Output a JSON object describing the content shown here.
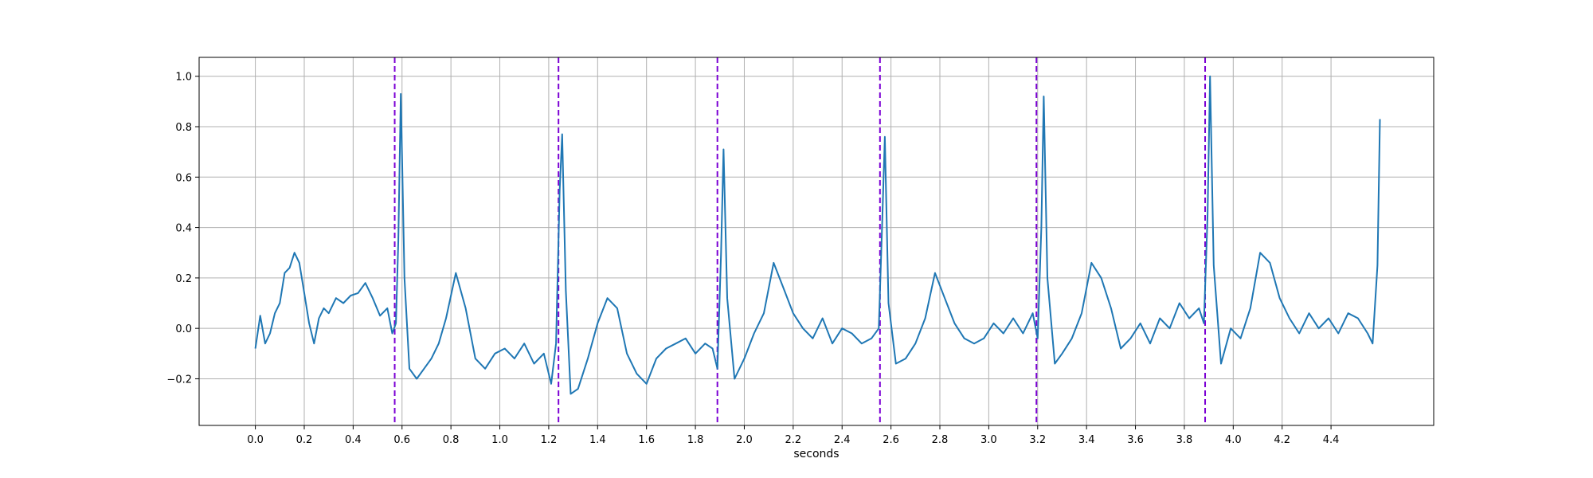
{
  "chart_data": {
    "type": "line",
    "title": "",
    "xlabel": "seconds",
    "ylabel": "",
    "xlim": [
      -0.23,
      4.82
    ],
    "ylim": [
      -0.385,
      1.075
    ],
    "grid": true,
    "x_ticks": [
      0.0,
      0.2,
      0.4,
      0.6,
      0.8,
      1.0,
      1.2,
      1.4,
      1.6,
      1.8,
      2.0,
      2.2,
      2.4,
      2.6,
      2.8,
      3.0,
      3.2,
      3.4,
      3.6,
      3.8,
      4.0,
      4.2,
      4.4
    ],
    "x_tick_labels": [
      "0.0",
      "0.2",
      "0.4",
      "0.6",
      "0.8",
      "1.0",
      "1.2",
      "1.4",
      "1.6",
      "1.8",
      "2.0",
      "2.2",
      "2.4",
      "2.6",
      "2.8",
      "3.0",
      "3.2",
      "3.4",
      "3.6",
      "3.8",
      "4.0",
      "4.2",
      "4.4"
    ],
    "y_ticks": [
      -0.2,
      0.0,
      0.2,
      0.4,
      0.6,
      0.8,
      1.0
    ],
    "y_tick_labels": [
      "−0.2",
      "0.0",
      "0.2",
      "0.4",
      "0.6",
      "0.8",
      "1.0"
    ],
    "series": [
      {
        "name": "",
        "color": "#1f77b4",
        "x": [
          0.0,
          0.02,
          0.04,
          0.06,
          0.08,
          0.1,
          0.12,
          0.14,
          0.16,
          0.18,
          0.2,
          0.22,
          0.24,
          0.26,
          0.28,
          0.3,
          0.33,
          0.36,
          0.39,
          0.42,
          0.45,
          0.48,
          0.51,
          0.54,
          0.56,
          0.575,
          0.585,
          0.595,
          0.61,
          0.63,
          0.66,
          0.69,
          0.72,
          0.75,
          0.78,
          0.82,
          0.86,
          0.9,
          0.94,
          0.98,
          1.02,
          1.06,
          1.1,
          1.14,
          1.18,
          1.21,
          1.23,
          1.245,
          1.255,
          1.27,
          1.29,
          1.32,
          1.36,
          1.4,
          1.44,
          1.48,
          1.52,
          1.56,
          1.6,
          1.64,
          1.68,
          1.72,
          1.76,
          1.8,
          1.84,
          1.87,
          1.89,
          1.905,
          1.915,
          1.93,
          1.96,
          2.0,
          2.04,
          2.08,
          2.12,
          2.16,
          2.2,
          2.24,
          2.28,
          2.32,
          2.36,
          2.4,
          2.44,
          2.48,
          2.52,
          2.55,
          2.565,
          2.575,
          2.59,
          2.62,
          2.66,
          2.7,
          2.74,
          2.78,
          2.82,
          2.86,
          2.9,
          2.94,
          2.98,
          3.02,
          3.06,
          3.1,
          3.14,
          3.18,
          3.2,
          3.215,
          3.225,
          3.24,
          3.27,
          3.3,
          3.34,
          3.38,
          3.42,
          3.46,
          3.5,
          3.54,
          3.58,
          3.62,
          3.66,
          3.7,
          3.74,
          3.78,
          3.82,
          3.86,
          3.88,
          3.895,
          3.905,
          3.92,
          3.95,
          3.99,
          4.03,
          4.07,
          4.11,
          4.15,
          4.19,
          4.23,
          4.27,
          4.31,
          4.35,
          4.39,
          4.43,
          4.47,
          4.51,
          4.55,
          4.57,
          4.59,
          4.6
        ],
        "y": [
          -0.08,
          0.05,
          -0.06,
          -0.02,
          0.06,
          0.1,
          0.22,
          0.24,
          0.3,
          0.26,
          0.14,
          0.02,
          -0.06,
          0.04,
          0.08,
          0.06,
          0.12,
          0.1,
          0.13,
          0.14,
          0.18,
          0.12,
          0.05,
          0.08,
          -0.02,
          0.02,
          0.35,
          0.93,
          0.2,
          -0.16,
          -0.2,
          -0.16,
          -0.12,
          -0.06,
          0.04,
          0.22,
          0.08,
          -0.12,
          -0.16,
          -0.1,
          -0.08,
          -0.12,
          -0.06,
          -0.14,
          -0.1,
          -0.22,
          -0.06,
          0.55,
          0.77,
          0.15,
          -0.26,
          -0.24,
          -0.12,
          0.02,
          0.12,
          0.08,
          -0.1,
          -0.18,
          -0.22,
          -0.12,
          -0.08,
          -0.06,
          -0.04,
          -0.1,
          -0.06,
          -0.08,
          -0.16,
          0.3,
          0.71,
          0.12,
          -0.2,
          -0.12,
          -0.02,
          0.06,
          0.26,
          0.16,
          0.06,
          0.0,
          -0.04,
          0.04,
          -0.06,
          0.0,
          -0.02,
          -0.06,
          -0.04,
          0.0,
          0.45,
          0.76,
          0.1,
          -0.14,
          -0.12,
          -0.06,
          0.04,
          0.22,
          0.12,
          0.02,
          -0.04,
          -0.06,
          -0.04,
          0.02,
          -0.02,
          0.04,
          -0.02,
          0.06,
          -0.04,
          0.4,
          0.92,
          0.2,
          -0.14,
          -0.1,
          -0.04,
          0.06,
          0.26,
          0.2,
          0.08,
          -0.08,
          -0.04,
          0.02,
          -0.06,
          0.04,
          0.0,
          0.1,
          0.04,
          0.08,
          0.02,
          0.45,
          1.0,
          0.25,
          -0.14,
          0.0,
          -0.04,
          0.08,
          0.3,
          0.26,
          0.12,
          0.04,
          -0.02,
          0.06,
          0.0,
          0.04,
          -0.02,
          0.06,
          0.04,
          -0.02,
          -0.06,
          0.25,
          0.83
        ]
      },
      {
        "name": "",
        "type": "vline",
        "color": "#7b00d4",
        "linestyle": "dashed",
        "x": [
          0.57,
          1.24,
          1.89,
          2.555,
          3.195,
          3.885
        ]
      }
    ]
  }
}
